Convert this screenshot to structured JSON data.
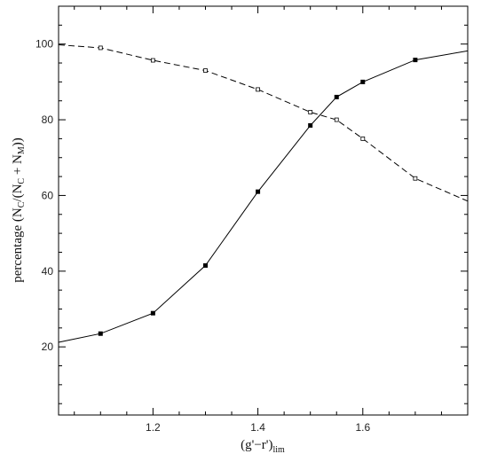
{
  "chart_data": {
    "type": "line",
    "xlabel": "(g'−r')",
    "xlabel_sub": "lim",
    "ylabel_parts": [
      "percentage  (N",
      "C",
      "/(N",
      "C",
      " + N",
      "M",
      "))"
    ],
    "xlim": [
      1.02,
      1.8
    ],
    "ylim": [
      2,
      110
    ],
    "x_ticks": [
      1.2,
      1.4,
      1.6
    ],
    "x_tick_labels": [
      "1.2",
      "1.4",
      "1.6"
    ],
    "y_ticks": [
      20,
      40,
      60,
      80,
      100
    ],
    "y_tick_labels": [
      "20",
      "40",
      "60",
      "80",
      "100"
    ],
    "grid": false,
    "series": [
      {
        "line_style": "solid",
        "marker": "filled-square",
        "x": [
          1.02,
          1.1,
          1.2,
          1.3,
          1.4,
          1.5,
          1.55,
          1.6,
          1.7,
          1.8
        ],
        "y": [
          21.2,
          23.5,
          28.9,
          41.5,
          61.0,
          78.5,
          86.0,
          90.0,
          95.8,
          98.2
        ],
        "marker_x": [
          1.1,
          1.2,
          1.3,
          1.4,
          1.5,
          1.55,
          1.6,
          1.7
        ]
      },
      {
        "line_style": "dashed",
        "marker": "open-square",
        "x": [
          1.02,
          1.1,
          1.2,
          1.3,
          1.4,
          1.5,
          1.55,
          1.6,
          1.7,
          1.8
        ],
        "y": [
          99.8,
          99.0,
          95.7,
          93.0,
          88.0,
          82.0,
          80.0,
          75.0,
          64.5,
          58.5
        ],
        "marker_x": [
          1.1,
          1.2,
          1.3,
          1.4,
          1.5,
          1.55,
          1.6,
          1.7
        ]
      }
    ]
  }
}
